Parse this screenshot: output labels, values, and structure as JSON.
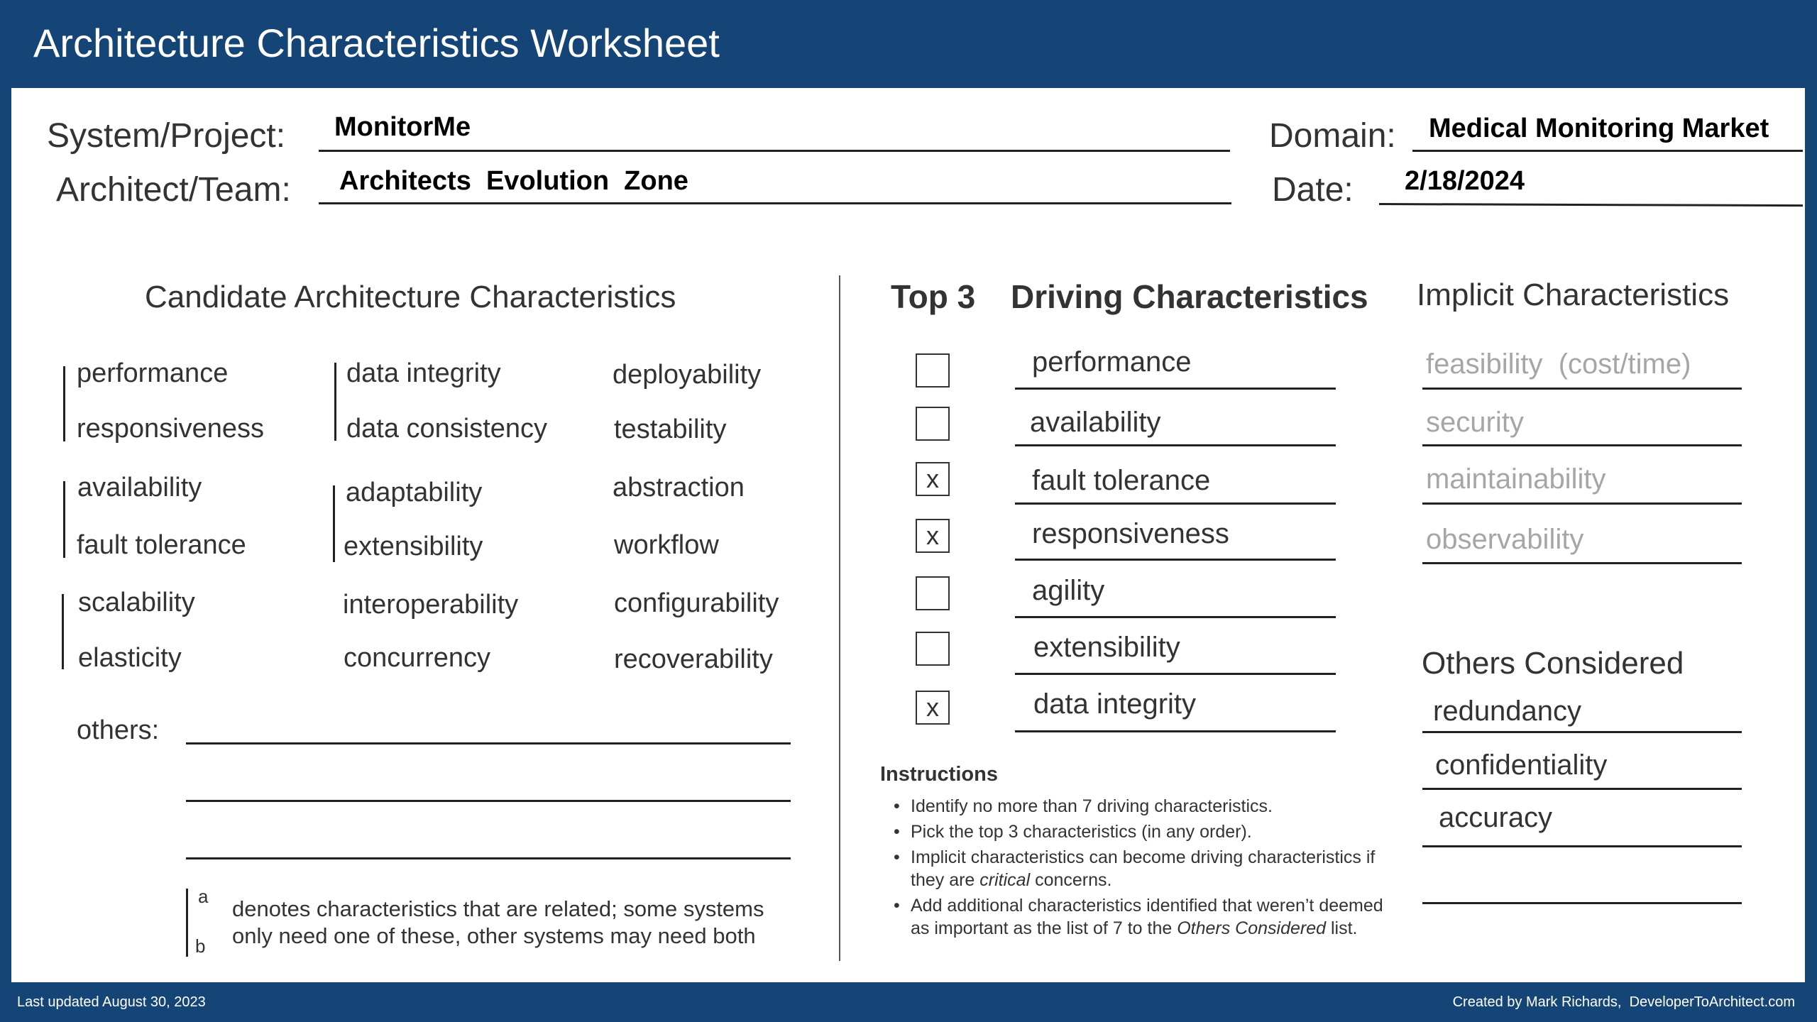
{
  "title": "Architecture Characteristics Worksheet",
  "header": {
    "system_label": "System/Project:",
    "system_value": "MonitorMe",
    "team_label": "Architect/Team:",
    "team_value": "Architects  Evolution  Zone",
    "domain_label": "Domain:",
    "domain_value": "Medical Monitoring Market",
    "date_label": "Date:",
    "date_value": "2/18/2024"
  },
  "candidate": {
    "heading": "Candidate Architecture Characteristics",
    "columns": [
      [
        "performance",
        "responsiveness",
        "availability",
        "fault tolerance",
        "scalability",
        "elasticity"
      ],
      [
        "data integrity",
        "data consistency",
        "adaptability",
        "extensibility",
        "interoperability",
        "concurrency"
      ],
      [
        "deployability",
        "testability",
        "abstraction",
        "workflow",
        "configurability",
        "recoverability"
      ]
    ],
    "others_label": "others:"
  },
  "legend": {
    "letter_a": "a",
    "letter_b": "b",
    "line1": "denotes characteristics that are related; some systems",
    "line2": "only need one of these, other systems may need both"
  },
  "driving": {
    "top3_label": "Top 3",
    "heading": "Driving Characteristics",
    "items": [
      {
        "mark": "",
        "label": "performance"
      },
      {
        "mark": "",
        "label": "availability"
      },
      {
        "mark": "x",
        "label": "fault tolerance"
      },
      {
        "mark": "x",
        "label": "responsiveness"
      },
      {
        "mark": "",
        "label": "agility"
      },
      {
        "mark": "",
        "label": "extensibility"
      },
      {
        "mark": "x",
        "label": "data integrity"
      }
    ]
  },
  "implicit": {
    "heading": "Implicit Characteristics",
    "items": [
      "feasibility  (cost/time)",
      "security",
      "maintainability",
      "observability"
    ]
  },
  "others_considered": {
    "heading": "Others Considered",
    "items": [
      "redundancy",
      "confidentiality",
      "accuracy",
      ""
    ]
  },
  "instructions": {
    "heading": "Instructions",
    "bullet": "•",
    "items": [
      {
        "text": "Identify no more than 7 driving characteristics."
      },
      {
        "text": "Pick the top 3 characteristics (in any order)."
      },
      {
        "pre": "Implicit characteristics can become driving characteristics if they are ",
        "em": "critical",
        "post": " concerns."
      },
      {
        "pre": "Add additional characteristics identified that weren’t deemed as important as the list of 7 to the ",
        "em": "Others Considered",
        "post": " list."
      }
    ]
  },
  "footer": {
    "left": "Last updated August 30, 2023",
    "right": "Created by Mark Richards,  DeveloperToArchitect.com"
  },
  "colors": {
    "brand_blue": "#154577",
    "implicit_gray": "#a6a6a6"
  }
}
